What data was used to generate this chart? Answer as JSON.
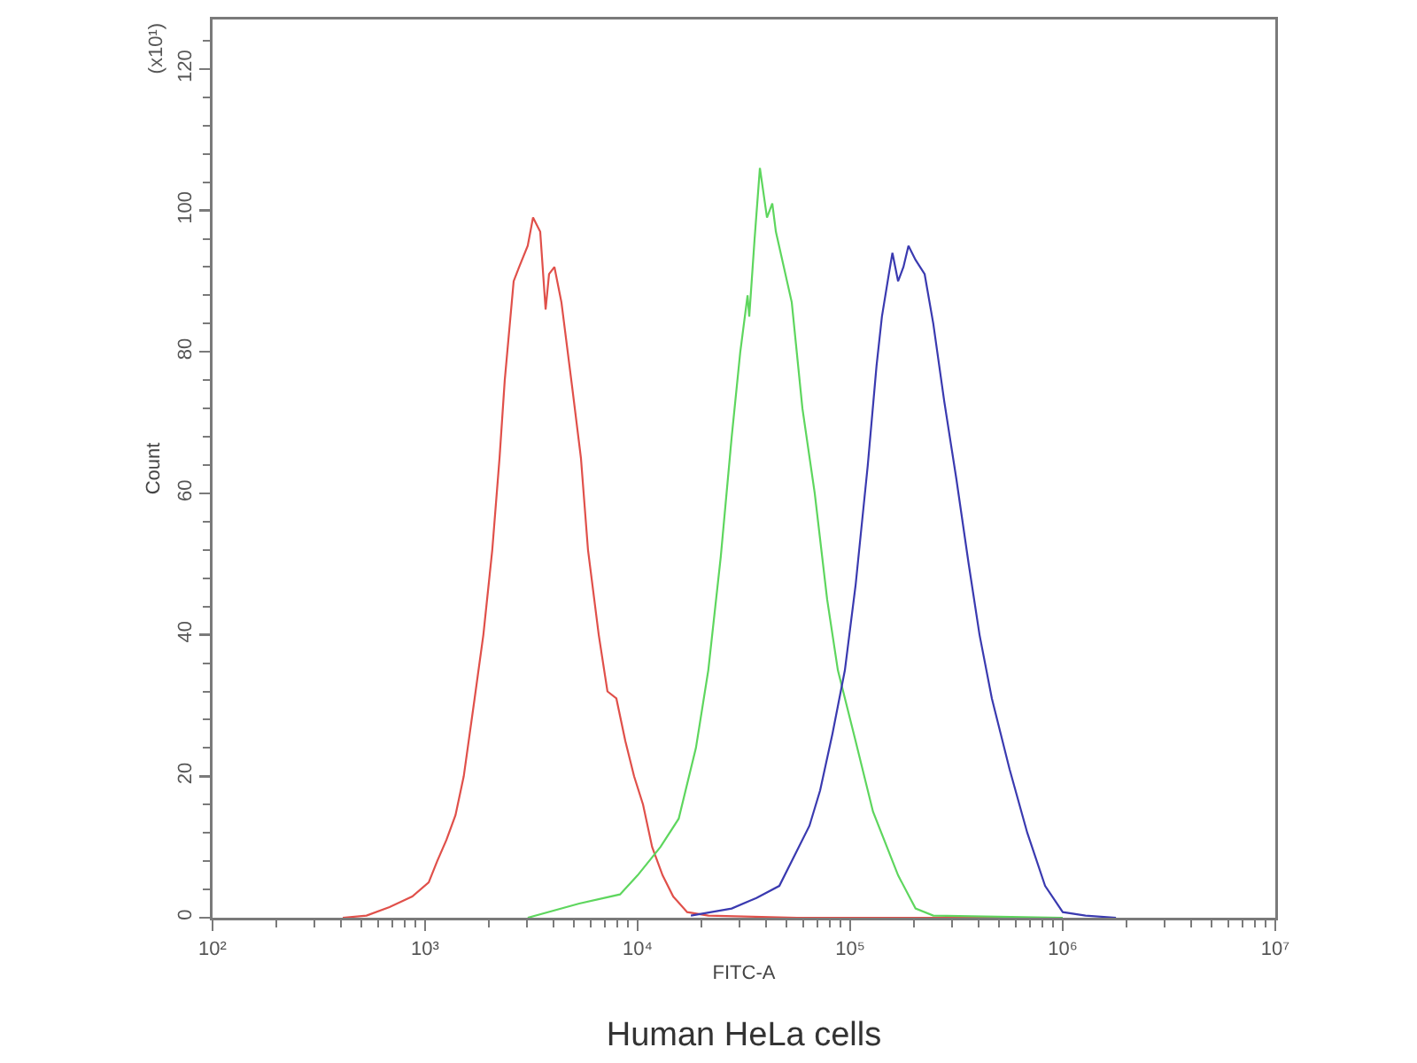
{
  "chart_data": {
    "type": "line",
    "title": "Human HeLa cells",
    "xlabel": "FITC-A",
    "ylabel": "Count",
    "annotations": [
      "(x10¹)"
    ],
    "log": "x",
    "xlim": [
      100,
      10000000
    ],
    "xticks": [
      {
        "value": 100,
        "label": "10²"
      },
      {
        "value": 200,
        "label": null
      },
      {
        "value": 300,
        "label": null
      },
      {
        "value": 400,
        "label": null
      },
      {
        "value": 500,
        "label": null
      },
      {
        "value": 600,
        "label": null
      },
      {
        "value": 700,
        "label": null
      },
      {
        "value": 800,
        "label": null
      },
      {
        "value": 900,
        "label": null
      },
      {
        "value": 1000,
        "label": "10³"
      },
      {
        "value": 2000,
        "label": null
      },
      {
        "value": 3000,
        "label": null
      },
      {
        "value": 4000,
        "label": null
      },
      {
        "value": 5000,
        "label": null
      },
      {
        "value": 6000,
        "label": null
      },
      {
        "value": 7000,
        "label": null
      },
      {
        "value": 8000,
        "label": null
      },
      {
        "value": 9000,
        "label": null
      },
      {
        "value": 10000,
        "label": "10⁴"
      },
      {
        "value": 20000,
        "label": null
      },
      {
        "value": 30000,
        "label": null
      },
      {
        "value": 40000,
        "label": null
      },
      {
        "value": 50000,
        "label": null
      },
      {
        "value": 60000,
        "label": null
      },
      {
        "value": 70000,
        "label": null
      },
      {
        "value": 80000,
        "label": null
      },
      {
        "value": 90000,
        "label": null
      },
      {
        "value": 100000,
        "label": "10⁵"
      },
      {
        "value": 200000,
        "label": null
      },
      {
        "value": 300000,
        "label": null
      },
      {
        "value": 400000,
        "label": null
      },
      {
        "value": 500000,
        "label": null
      },
      {
        "value": 600000,
        "label": null
      },
      {
        "value": 700000,
        "label": null
      },
      {
        "value": 800000,
        "label": null
      },
      {
        "value": 900000,
        "label": null
      },
      {
        "value": 1000000,
        "label": "10⁶"
      },
      {
        "value": 2000000,
        "label": null
      },
      {
        "value": 3000000,
        "label": null
      },
      {
        "value": 4000000,
        "label": null
      },
      {
        "value": 5000000,
        "label": null
      },
      {
        "value": 6000000,
        "label": null
      },
      {
        "value": 7000000,
        "label": null
      },
      {
        "value": 8000000,
        "label": null
      },
      {
        "value": 9000000,
        "label": null
      },
      {
        "value": 10000000,
        "label": "10⁷"
      }
    ],
    "ylim": [
      0,
      127
    ],
    "yticks": [
      0,
      {
        "value": 4,
        "label": null
      },
      {
        "value": 8,
        "label": null
      },
      {
        "value": 12,
        "label": null
      },
      {
        "value": 16,
        "label": null
      },
      20,
      {
        "value": 24,
        "label": null
      },
      {
        "value": 28,
        "label": null
      },
      {
        "value": 32,
        "label": null
      },
      {
        "value": 36,
        "label": null
      },
      40,
      {
        "value": 44,
        "label": null
      },
      {
        "value": 48,
        "label": null
      },
      {
        "value": 52,
        "label": null
      },
      {
        "value": 56,
        "label": null
      },
      60,
      {
        "value": 64,
        "label": null
      },
      {
        "value": 68,
        "label": null
      },
      {
        "value": 72,
        "label": null
      },
      {
        "value": 76,
        "label": null
      },
      80,
      {
        "value": 84,
        "label": null
      },
      {
        "value": 88,
        "label": null
      },
      {
        "value": 92,
        "label": null
      },
      {
        "value": 96,
        "label": null
      },
      100,
      {
        "value": 104,
        "label": null
      },
      {
        "value": 108,
        "label": null
      },
      {
        "value": 112,
        "label": null
      },
      {
        "value": 116,
        "label": null
      },
      120,
      {
        "value": 124,
        "label": null
      }
    ],
    "series": [
      {
        "color": "#e0504a",
        "x": [
          410,
          530,
          680,
          870,
          1040,
          1140,
          1260,
          1390,
          1520,
          1710,
          1880,
          2070,
          2240,
          2370,
          2610,
          2770,
          3040,
          3220,
          3480,
          3690,
          3830,
          4060,
          4380,
          4920,
          5410,
          5840,
          6560,
          7210,
          7940,
          8750,
          9620,
          10600,
          11700,
          13100,
          14700,
          17100,
          21500,
          56200,
          1000000
        ],
        "values": [
          0,
          0.3,
          1.5,
          3,
          5,
          8,
          11,
          14.5,
          20,
          31,
          40,
          52,
          65,
          76,
          90,
          92,
          95,
          99,
          97,
          86,
          91,
          92,
          87,
          75,
          65,
          52,
          40,
          32,
          31,
          25,
          20,
          16,
          10,
          6,
          3,
          0.8,
          0.3,
          0,
          0
        ]
      },
      {
        "color": "#5ed65e",
        "x": [
          3040,
          5310,
          8260,
          10000,
          12800,
          15600,
          18800,
          21500,
          24600,
          27700,
          30400,
          32900,
          33500,
          35500,
          37600,
          40600,
          43000,
          44700,
          53100,
          59600,
          68100,
          77900,
          87500,
          106000,
          128000,
          168000,
          203000,
          246000,
          1000000
        ],
        "values": [
          0,
          2,
          3.3,
          6,
          10,
          14,
          24,
          35,
          51,
          68,
          80,
          88,
          85,
          96,
          106,
          99,
          101,
          97,
          87,
          72,
          60,
          45,
          35,
          25,
          15,
          6,
          1.3,
          0.3,
          0
        ]
      },
      {
        "color": "#3a3ab0",
        "x": [
          17800,
          27700,
          36200,
          46400,
          56200,
          64300,
          72200,
          82500,
          94400,
          106000,
          121000,
          133000,
          141000,
          152000,
          158000,
          168000,
          178000,
          188000,
          203000,
          224000,
          246000,
          277000,
          316000,
          361000,
          406000,
          464000,
          562000,
          681000,
          826000,
          1000000,
          1280000,
          1780000
        ],
        "values": [
          0.3,
          1.3,
          2.8,
          4.5,
          9.5,
          13,
          18,
          26,
          35,
          47,
          64,
          78,
          85,
          91,
          94,
          90,
          92,
          95,
          93,
          91,
          84,
          73,
          62,
          50,
          40,
          31,
          21,
          12,
          4.5,
          0.8,
          0.3,
          0
        ]
      }
    ]
  }
}
